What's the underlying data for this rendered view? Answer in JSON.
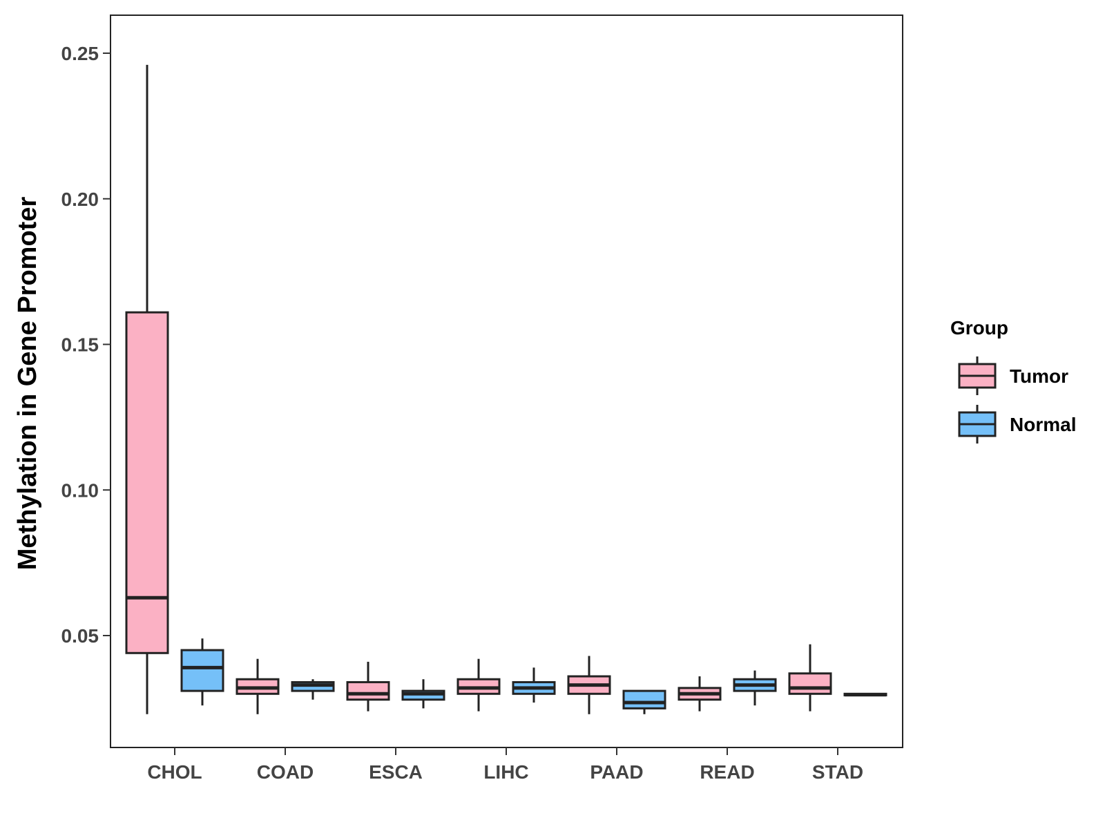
{
  "chart_data": {
    "type": "boxplot",
    "title": "",
    "xlabel": "",
    "ylabel": "Methylation in Gene Promoter",
    "ylim": [
      0.011,
      0.263
    ],
    "yticks": [
      {
        "value": 0.05,
        "label": "0.05"
      },
      {
        "value": 0.1,
        "label": "0.10"
      },
      {
        "value": 0.15,
        "label": "0.15"
      },
      {
        "value": 0.2,
        "label": "0.20"
      },
      {
        "value": 0.25,
        "label": "0.25"
      }
    ],
    "categories": [
      "CHOL",
      "COAD",
      "ESCA",
      "LIHC",
      "PAAD",
      "READ",
      "STAD"
    ],
    "legend": {
      "title": "Group",
      "position": "right",
      "entries": [
        {
          "name": "Tumor",
          "color": "#FBB1C4"
        },
        {
          "name": "Normal",
          "color": "#75C0F8"
        }
      ]
    },
    "series": [
      {
        "name": "Tumor",
        "color": "#FBB1C4",
        "boxes": [
          {
            "min": 0.023,
            "q1": 0.044,
            "median": 0.063,
            "q3": 0.161,
            "max": 0.246
          },
          {
            "min": 0.023,
            "q1": 0.03,
            "median": 0.032,
            "q3": 0.035,
            "max": 0.042
          },
          {
            "min": 0.024,
            "q1": 0.028,
            "median": 0.03,
            "q3": 0.034,
            "max": 0.041
          },
          {
            "min": 0.024,
            "q1": 0.03,
            "median": 0.032,
            "q3": 0.035,
            "max": 0.042
          },
          {
            "min": 0.023,
            "q1": 0.03,
            "median": 0.033,
            "q3": 0.036,
            "max": 0.043
          },
          {
            "min": 0.024,
            "q1": 0.028,
            "median": 0.03,
            "q3": 0.032,
            "max": 0.036
          },
          {
            "min": 0.024,
            "q1": 0.03,
            "median": 0.032,
            "q3": 0.037,
            "max": 0.047
          }
        ]
      },
      {
        "name": "Normal",
        "color": "#75C0F8",
        "boxes": [
          {
            "min": 0.026,
            "q1": 0.031,
            "median": 0.039,
            "q3": 0.045,
            "max": 0.049
          },
          {
            "min": 0.028,
            "q1": 0.031,
            "median": 0.033,
            "q3": 0.034,
            "max": 0.035
          },
          {
            "min": 0.025,
            "q1": 0.028,
            "median": 0.03,
            "q3": 0.031,
            "max": 0.035
          },
          {
            "min": 0.027,
            "q1": 0.03,
            "median": 0.032,
            "q3": 0.034,
            "max": 0.039
          },
          {
            "min": 0.023,
            "q1": 0.025,
            "median": 0.027,
            "q3": 0.031,
            "max": 0.031
          },
          {
            "min": 0.026,
            "q1": 0.031,
            "median": 0.033,
            "q3": 0.035,
            "max": 0.038
          },
          {
            "min": 0.0292,
            "q1": 0.0295,
            "median": 0.0297,
            "q3": 0.03,
            "max": 0.0303
          }
        ]
      }
    ]
  }
}
